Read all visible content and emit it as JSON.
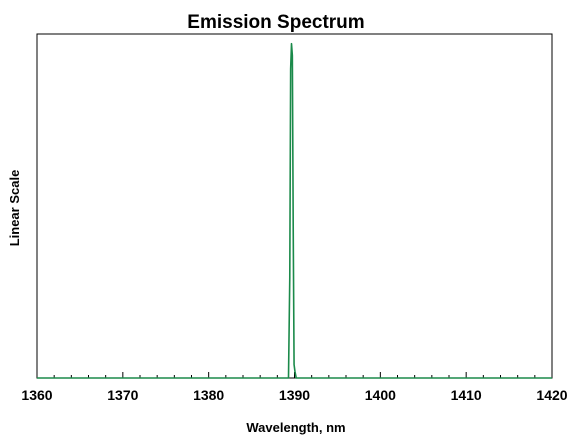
{
  "chart_data": {
    "type": "line",
    "title": "Emission Spectrum",
    "xlabel": "Wavelength, nm",
    "ylabel": "Linear Scale",
    "xlim": [
      1360,
      1420
    ],
    "ylim": [
      0,
      1
    ],
    "x_ticks": [
      "1360",
      "1370",
      "1380",
      "1390",
      "1400",
      "1410",
      "1420"
    ],
    "grid": false,
    "legend": "none",
    "series": [
      {
        "color": "#1b8a4a",
        "x": [
          1360,
          1389.3,
          1389.45,
          1389.55,
          1389.65,
          1389.75,
          1389.85,
          1389.95,
          1390.05,
          1390.2,
          1420
        ],
        "y": [
          0,
          0,
          0.3,
          0.92,
          0.995,
          0.96,
          0.45,
          0.04,
          0.02,
          0,
          0
        ]
      }
    ]
  }
}
